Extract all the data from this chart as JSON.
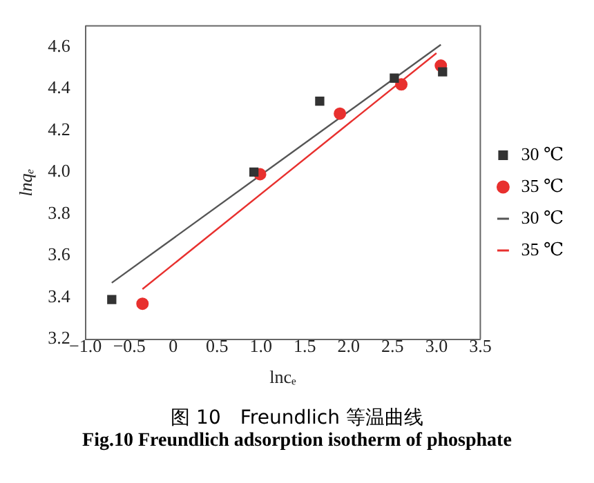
{
  "chart_data": {
    "type": "scatter",
    "title": "图 10　Freundlich 等温曲线",
    "subtitle": "Fig.10 Freundlich adsorption isotherm of phosphate",
    "xlabel": "lncₑ",
    "ylabel": "lnqₑ",
    "series": [
      {
        "name": "30 ℃",
        "marker": "square",
        "color": "#333333",
        "x": [
          -0.7,
          0.92,
          1.67,
          2.52,
          3.07
        ],
        "values": [
          3.39,
          4.0,
          4.34,
          4.45,
          4.48
        ]
      },
      {
        "name": "35 ℃",
        "marker": "circle",
        "color": "#e8302e",
        "x": [
          -0.35,
          0.99,
          1.9,
          2.6,
          3.05
        ],
        "values": [
          3.37,
          3.99,
          4.28,
          4.42,
          4.51
        ]
      },
      {
        "name": "30 ℃",
        "type": "line",
        "marker": "none",
        "color": "#555555",
        "x": [
          -0.7,
          3.05
        ],
        "values": [
          3.47,
          4.61
        ]
      },
      {
        "name": "35 ℃",
        "type": "line",
        "marker": "none",
        "color": "#e8302e",
        "x": [
          -0.35,
          3.0
        ],
        "values": [
          3.44,
          4.57
        ]
      }
    ],
    "xlim": [
      -1.0,
      3.5
    ],
    "xticks": [
      {
        "value": -1,
        "label": "−1.0"
      },
      {
        "value": -0.5,
        "label": "−0.5"
      },
      0,
      0.5,
      {
        "value": 1,
        "label": "1.0"
      },
      1.5,
      {
        "value": 2,
        "label": "2.0"
      },
      2.5,
      {
        "value": 3,
        "label": "3.0"
      },
      3.5
    ],
    "ylim": [
      3.2,
      4.7
    ],
    "yticks": [
      3.2,
      3.4,
      3.6,
      3.8,
      {
        "value": 4,
        "label": "4.0"
      },
      4.2,
      4.4,
      4.6
    ],
    "grid": false,
    "legend": "right"
  }
}
